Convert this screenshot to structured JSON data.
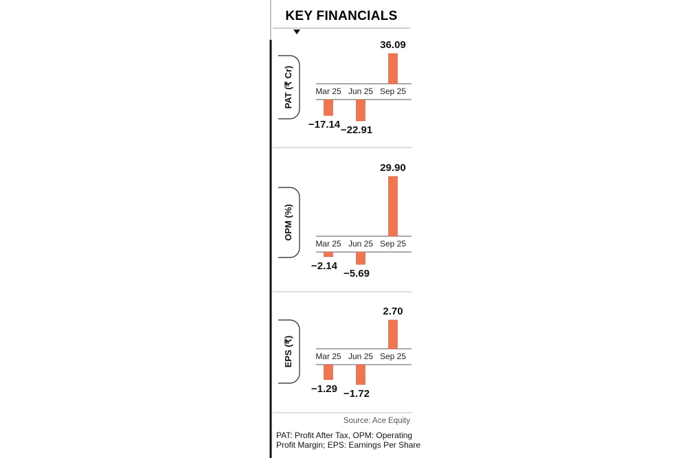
{
  "title": "KEY FINANCIALS",
  "source": "Source: Ace Equity",
  "footnote_line1": "PAT: Profit After Tax, OPM: Operating",
  "footnote_line2": "Profit Margin; EPS: Earnings Per Share",
  "colors": {
    "bar": "#ee7752",
    "bar_stroke": "#c9563a",
    "rule": "#555555",
    "divider": "#bdbdbd"
  },
  "chart_data": [
    {
      "type": "bar",
      "ylabel": "PAT (₹ Cr)",
      "categories": [
        "Mar 25",
        "Jun 25",
        "Sep 25"
      ],
      "values": [
        -17.14,
        -22.91,
        36.09
      ],
      "value_labels": [
        "−17.14",
        "−22.91",
        "36.09"
      ]
    },
    {
      "type": "bar",
      "ylabel": "OPM (%)",
      "categories": [
        "Mar 25",
        "Jun 25",
        "Sep 25"
      ],
      "values": [
        -2.14,
        -5.69,
        29.9
      ],
      "value_labels": [
        "−2.14",
        "−5.69",
        "29.90"
      ]
    },
    {
      "type": "bar",
      "ylabel": "EPS (₹)",
      "categories": [
        "Mar 25",
        "Jun 25",
        "Sep 25"
      ],
      "values": [
        -1.29,
        -1.72,
        2.7
      ],
      "value_labels": [
        "−1.29",
        "−1.72",
        "2.70"
      ]
    }
  ]
}
